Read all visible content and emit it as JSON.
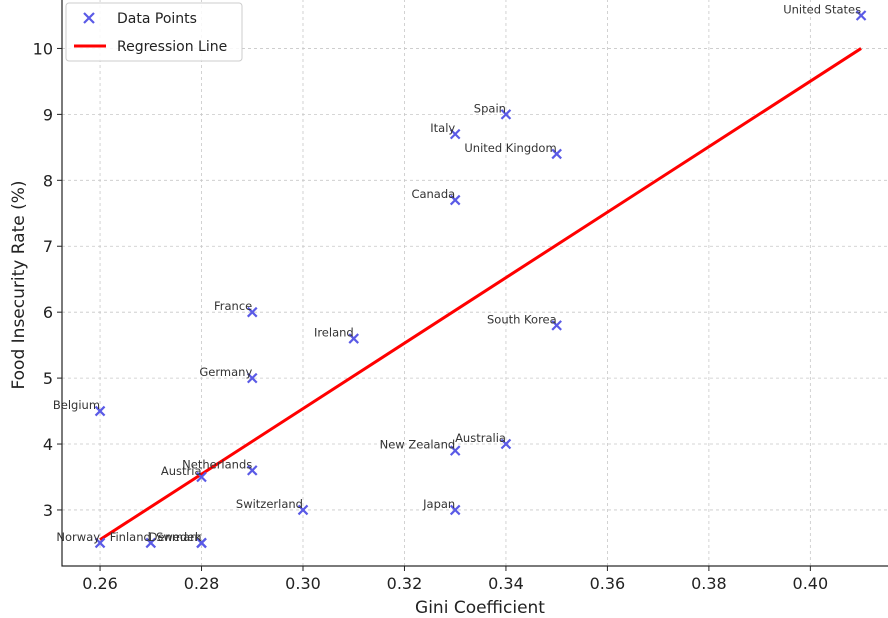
{
  "chart_data": {
    "type": "scatter",
    "xlabel": "Gini Coefficient",
    "ylabel": "Food Insecurity Rate (%)",
    "xlim": [
      0.2525,
      0.4155
    ],
    "ylim": [
      2.15,
      10.75
    ],
    "x_ticks": [
      "0.26",
      "0.28",
      "0.30",
      "0.32",
      "0.34",
      "0.36",
      "0.38",
      "0.40"
    ],
    "y_ticks": [
      "3",
      "4",
      "5",
      "6",
      "7",
      "8",
      "9",
      "10"
    ],
    "grid": true,
    "legend_position": "top-left",
    "series": [
      {
        "name": "Data Points",
        "marker": "x",
        "color": "#5a5ae6",
        "points": [
          {
            "label": "United States",
            "x": 0.41,
            "y": 10.5
          },
          {
            "label": "Spain",
            "x": 0.34,
            "y": 9.0
          },
          {
            "label": "Italy",
            "x": 0.33,
            "y": 8.7
          },
          {
            "label": "United Kingdom",
            "x": 0.35,
            "y": 8.4
          },
          {
            "label": "Canada",
            "x": 0.33,
            "y": 7.7
          },
          {
            "label": "France",
            "x": 0.29,
            "y": 6.0
          },
          {
            "label": "South Korea",
            "x": 0.35,
            "y": 5.8
          },
          {
            "label": "Ireland",
            "x": 0.31,
            "y": 5.6
          },
          {
            "label": "Germany",
            "x": 0.29,
            "y": 5.0
          },
          {
            "label": "Belgium",
            "x": 0.26,
            "y": 4.5
          },
          {
            "label": "Australia",
            "x": 0.34,
            "y": 4.0
          },
          {
            "label": "New Zealand",
            "x": 0.33,
            "y": 3.9
          },
          {
            "label": "Netherlands",
            "x": 0.29,
            "y": 3.6
          },
          {
            "label": "Austria",
            "x": 0.28,
            "y": 3.5
          },
          {
            "label": "Switzerland",
            "x": 0.3,
            "y": 3.0
          },
          {
            "label": "Japan",
            "x": 0.33,
            "y": 3.0
          },
          {
            "label": "Norway",
            "x": 0.26,
            "y": 2.5
          },
          {
            "label": "Finland",
            "x": 0.27,
            "y": 2.5
          },
          {
            "label": "Denmark",
            "x": 0.28,
            "y": 2.5
          },
          {
            "label": "Sweden",
            "x": 0.28,
            "y": 2.5
          }
        ]
      },
      {
        "name": "Regression Line",
        "type": "line",
        "color": "#ff0000",
        "x": [
          0.26,
          0.41
        ],
        "y": [
          2.55,
          10.0
        ]
      }
    ]
  }
}
